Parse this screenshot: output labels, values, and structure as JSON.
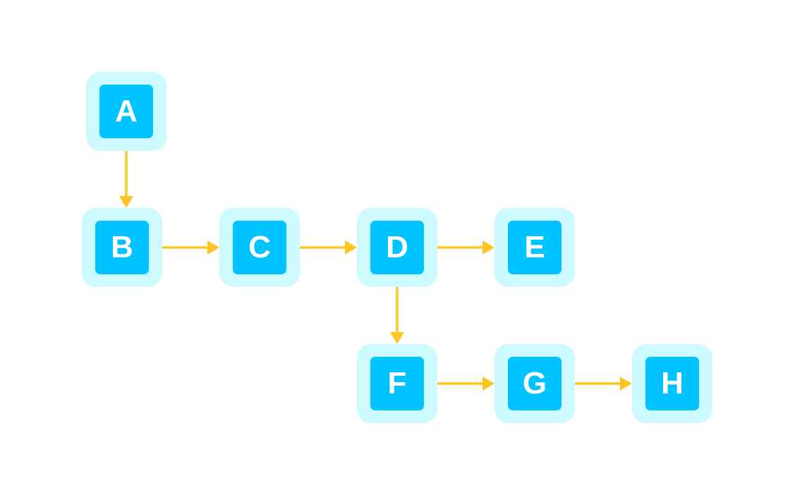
{
  "diagram": {
    "type": "flowchart",
    "colors": {
      "node_halo": "#ccfaff",
      "node_core": "#00c3ff",
      "node_text": "#ffffff",
      "edge": "#ffc623",
      "background": "#ffffff"
    },
    "nodes": [
      {
        "id": "A",
        "label": "A"
      },
      {
        "id": "B",
        "label": "B"
      },
      {
        "id": "C",
        "label": "C"
      },
      {
        "id": "D",
        "label": "D"
      },
      {
        "id": "E",
        "label": "E"
      },
      {
        "id": "F",
        "label": "F"
      },
      {
        "id": "G",
        "label": "G"
      },
      {
        "id": "H",
        "label": "H"
      }
    ],
    "edges": [
      {
        "from": "A",
        "to": "B"
      },
      {
        "from": "B",
        "to": "C"
      },
      {
        "from": "C",
        "to": "D"
      },
      {
        "from": "D",
        "to": "E"
      },
      {
        "from": "D",
        "to": "F"
      },
      {
        "from": "F",
        "to": "G"
      },
      {
        "from": "G",
        "to": "H"
      }
    ]
  }
}
